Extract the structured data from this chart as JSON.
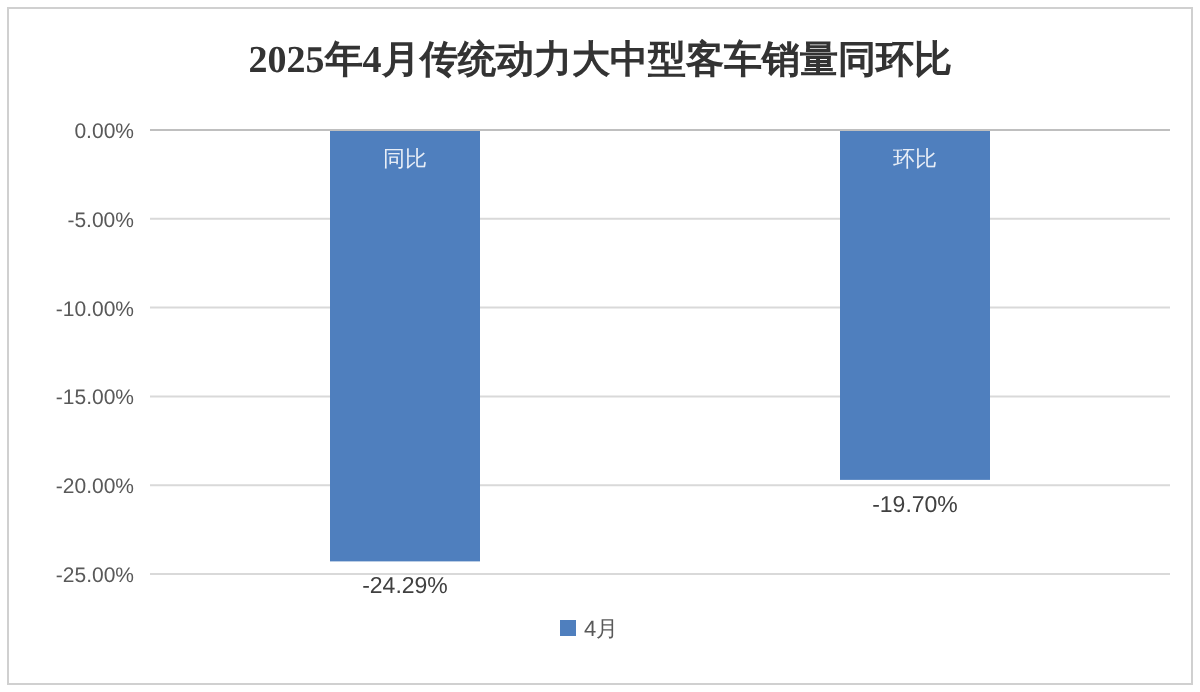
{
  "chart_data": {
    "type": "bar",
    "title": "2025年4月传统动力大中型客车销量同环比",
    "categories": [
      "同比",
      "环比"
    ],
    "series": [
      {
        "name": "4月",
        "color": "#4f7fbe",
        "values": [
          -24.29,
          -19.7
        ],
        "value_labels": [
          "-24.29%",
          "-19.70%"
        ]
      }
    ],
    "ylim": [
      -25,
      0
    ],
    "yticks": [
      {
        "value": 0,
        "label": "0.00%"
      },
      {
        "value": -5,
        "label": "-5.00%"
      },
      {
        "value": -10,
        "label": "-10.00%"
      },
      {
        "value": -15,
        "label": "-15.00%"
      },
      {
        "value": -20,
        "label": "-20.00%"
      },
      {
        "value": -25,
        "label": "-25.00%"
      }
    ],
    "grid": "y",
    "legend": "bottom"
  }
}
